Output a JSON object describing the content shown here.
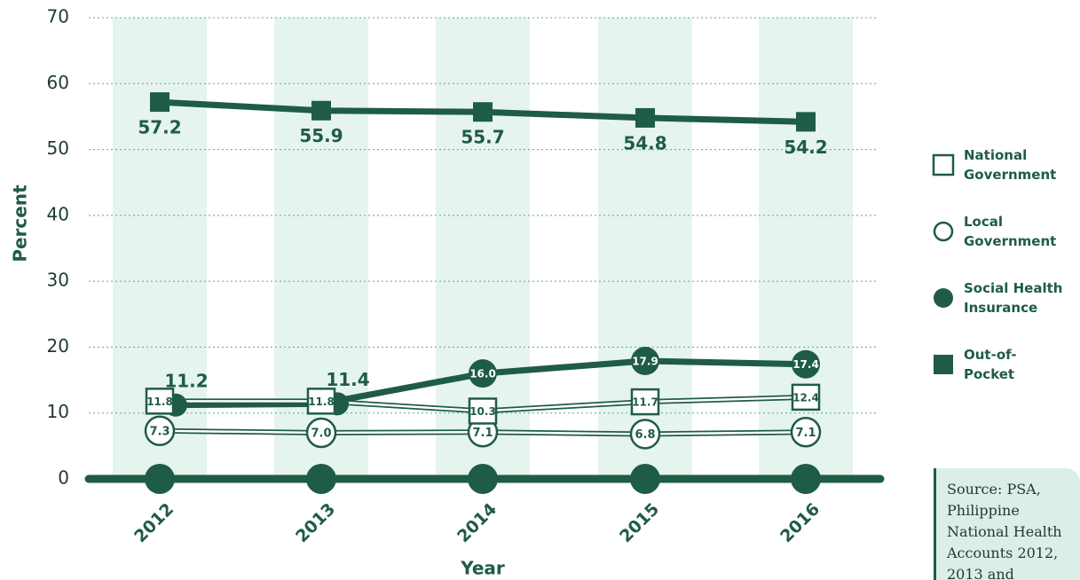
{
  "chart_data": {
    "type": "line",
    "y_label": "Percent",
    "x_label": "Year",
    "categories": [
      "2012",
      "2013",
      "2014",
      "2015",
      "2016"
    ],
    "ylim": [
      0,
      70
    ],
    "yticks": [
      0,
      10,
      20,
      30,
      40,
      50,
      60,
      70
    ],
    "grid": true,
    "legend": "right",
    "series": [
      {
        "name": "National Government",
        "color": "#1f5c45",
        "marker": "square-open",
        "values": [
          11.8,
          11.8,
          10.3,
          11.7,
          12.4
        ],
        "value_labels": [
          "11.8",
          "11.8",
          "10.3",
          "11.7",
          "12.4"
        ]
      },
      {
        "name": "Local Government",
        "color": "#1f5c45",
        "marker": "circle-open",
        "values": [
          7.3,
          7.0,
          7.1,
          6.8,
          7.1
        ],
        "value_labels": [
          "7.3",
          "7.0",
          "7.1",
          "6.8",
          "7.1"
        ]
      },
      {
        "name": "Social Health Insurance",
        "color": "#1f5c45",
        "marker": "circle",
        "values": [
          11.2,
          11.4,
          16.0,
          17.9,
          17.4
        ],
        "value_labels": [
          "11.2",
          "11.4",
          "16.0",
          "17.9",
          "17.4"
        ]
      },
      {
        "name": "Out-of-Pocket",
        "color": "#1f5c45",
        "marker": "square",
        "values": [
          57.2,
          55.9,
          55.7,
          54.8,
          54.2
        ],
        "value_labels": [
          "57.2",
          "55.9",
          "55.7",
          "54.8",
          "54.2"
        ]
      }
    ],
    "source": "Source: PSA, Philippine National Health Accounts 2012, 2013 and"
  }
}
